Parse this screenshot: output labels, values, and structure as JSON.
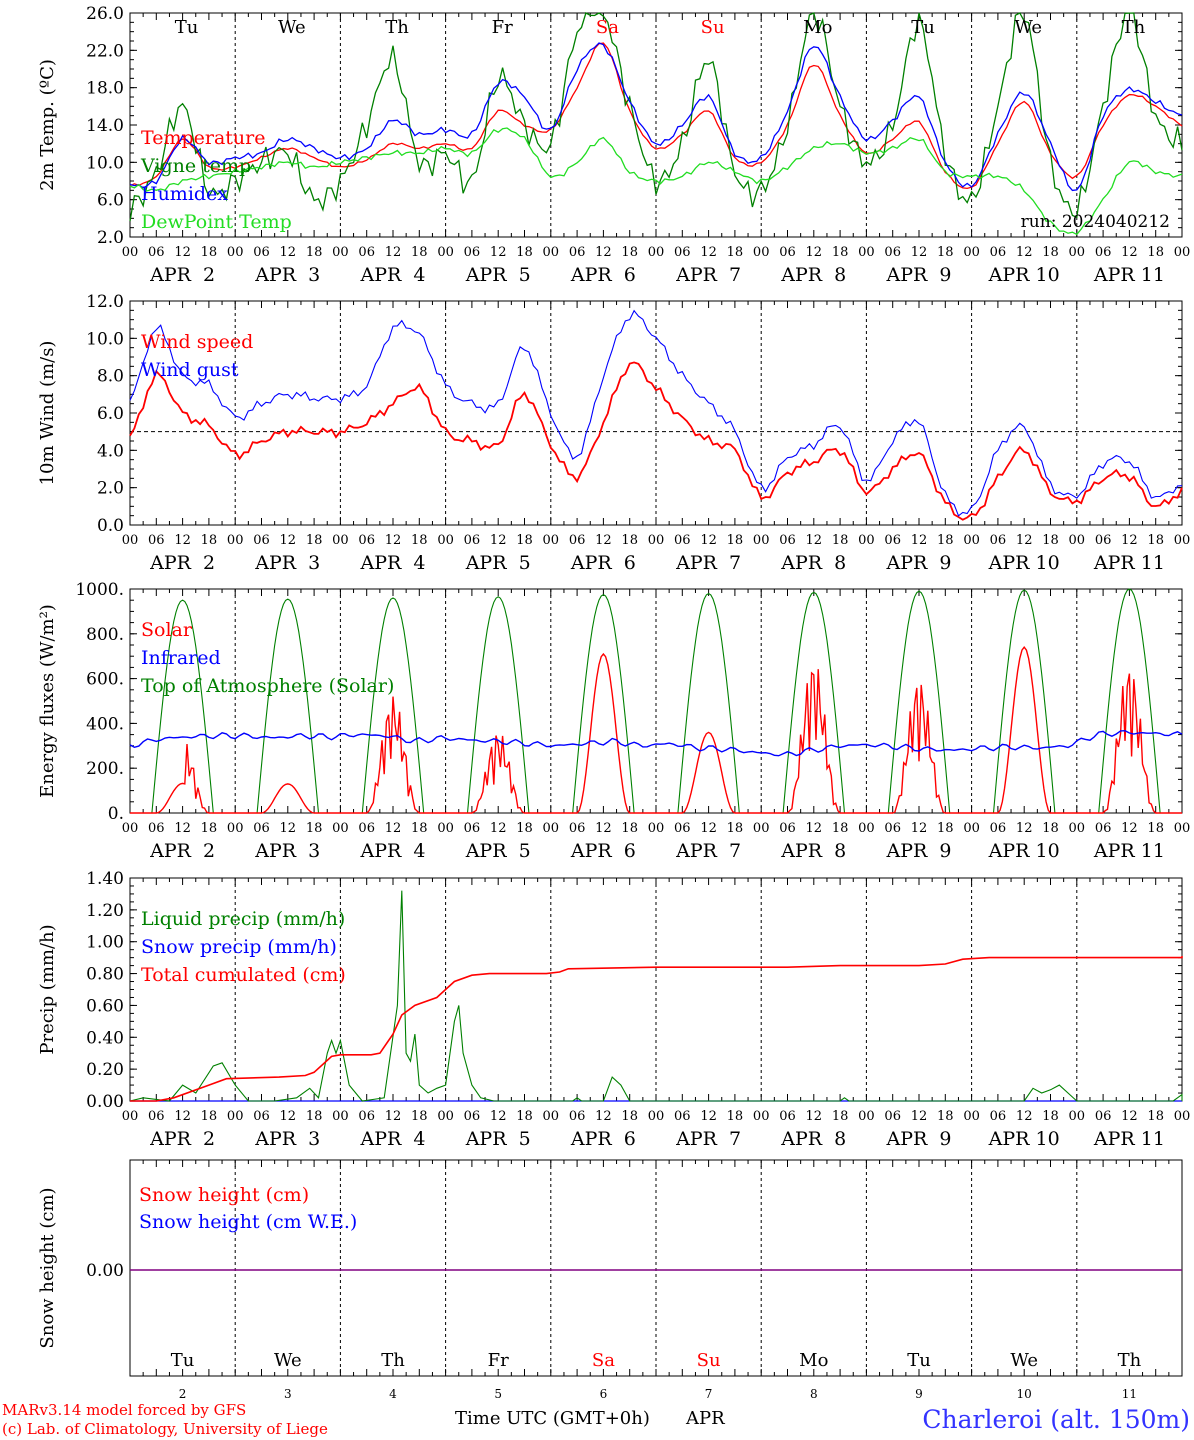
{
  "run_label": "run: 2024040212",
  "x_axis_title": "Time UTC (GMT+0h)",
  "x_axis_month": "APR",
  "footer": {
    "model_line": "MARv3.14 model forced by GFS",
    "copyright_line": "(c) Lab. of Climatology, University of Liege",
    "station": "Charleroi (alt. 150m)"
  },
  "hour_ticks": [
    "00",
    "06",
    "12",
    "18"
  ],
  "day_labels": [
    "APR  2",
    "APR  3",
    "APR  4",
    "APR  5",
    "APR  6",
    "APR  7",
    "APR  8",
    "APR  9",
    "APR 10",
    "APR 11"
  ],
  "day_numbers": [
    "2",
    "3",
    "4",
    "5",
    "6",
    "7",
    "8",
    "9",
    "10",
    "11"
  ],
  "weekdays": [
    {
      "label": "Tu",
      "weekend": false
    },
    {
      "label": "We",
      "weekend": false
    },
    {
      "label": "Th",
      "weekend": false
    },
    {
      "label": "Fr",
      "weekend": false
    },
    {
      "label": "Sa",
      "weekend": true
    },
    {
      "label": "Su",
      "weekend": true
    },
    {
      "label": "Mo",
      "weekend": false
    },
    {
      "label": "Tu",
      "weekend": false
    },
    {
      "label": "We",
      "weekend": false
    },
    {
      "label": "Th",
      "weekend": false
    }
  ],
  "colors": {
    "red": "#ff0000",
    "green": "#008000",
    "blue": "#0000ff",
    "lightgreen": "#22dd22",
    "purple": "#800080",
    "footer_red": "#ff0000",
    "station_blue": "#3333ff",
    "weekend": "#ff0000"
  },
  "chart_data": [
    {
      "type": "line",
      "id": "temperature",
      "ylabel": "2m Temp. (ºC)",
      "ylim": [
        2,
        26
      ],
      "yticks": [
        "2.0",
        "6.0",
        "10.0",
        "14.0",
        "18.0",
        "22.0",
        "26.0"
      ],
      "show_weekdays": true,
      "x_hours_knots": [
        0,
        6,
        12,
        18,
        24,
        30,
        36,
        42,
        48,
        54,
        60,
        66,
        72,
        78,
        84,
        90,
        96,
        102,
        108,
        114,
        120,
        126,
        132,
        138,
        144,
        150,
        156,
        162,
        168,
        174,
        180,
        186,
        192,
        198,
        204,
        210,
        216,
        222,
        228,
        234,
        240
      ],
      "series": [
        {
          "name": "Temperature",
          "color": "red",
          "values": [
            7.5,
            8.5,
            12.5,
            9.5,
            9.5,
            10.5,
            11.5,
            10.5,
            9.5,
            10.3,
            12.0,
            11.5,
            12.0,
            11.5,
            15.5,
            14.0,
            13.5,
            18.0,
            22.8,
            15.5,
            11.5,
            13.0,
            15.5,
            10.5,
            10.0,
            14.0,
            20.5,
            15.0,
            11.0,
            12.5,
            14.3,
            9.0,
            7.3,
            12.0,
            16.5,
            11.0,
            8.5,
            14.0,
            17.2,
            16.0,
            14.0
          ]
        },
        {
          "name": "Vigne temp",
          "color": "green",
          "values": [
            5.0,
            9.0,
            16.0,
            7.0,
            8.0,
            10.0,
            11.0,
            6.0,
            8.0,
            14.0,
            21.0,
            10.0,
            11.0,
            8.0,
            19.0,
            14.0,
            12.0,
            24.0,
            26.0,
            16.0,
            8.0,
            12.0,
            21.0,
            9.0,
            7.0,
            14.0,
            26.0,
            16.0,
            10.0,
            14.0,
            25.0,
            11.0,
            6.0,
            16.0,
            26.0,
            10.0,
            5.0,
            16.0,
            26.0,
            15.0,
            12.0
          ]
        },
        {
          "name": "Humidex",
          "color": "blue",
          "values": [
            7.5,
            8.0,
            12.5,
            10.0,
            10.5,
            11.0,
            12.5,
            11.5,
            10.5,
            11.5,
            14.5,
            13.0,
            13.5,
            13.0,
            18.5,
            17.0,
            13.5,
            20.0,
            22.5,
            16.5,
            12.0,
            14.0,
            17.0,
            11.0,
            10.5,
            15.5,
            22.5,
            17.0,
            12.5,
            14.5,
            17.0,
            10.0,
            7.5,
            13.0,
            17.5,
            12.0,
            7.0,
            15.0,
            17.8,
            16.5,
            15.0
          ]
        },
        {
          "name": "DewPoint Temp",
          "color": "lightgreen",
          "values": [
            7.5,
            7.0,
            8.0,
            8.5,
            9.0,
            9.5,
            10.0,
            9.5,
            10.0,
            10.5,
            11.0,
            11.0,
            11.5,
            11.0,
            13.5,
            12.5,
            8.5,
            10.0,
            12.5,
            9.0,
            8.0,
            8.5,
            10.0,
            9.0,
            8.0,
            9.5,
            11.5,
            12.0,
            11.0,
            11.5,
            12.5,
            9.0,
            8.5,
            8.5,
            7.0,
            3.5,
            2.5,
            6.0,
            10.0,
            9.0,
            8.5
          ]
        }
      ]
    },
    {
      "type": "line",
      "id": "wind",
      "ylabel": "10m Wind (m/s)",
      "ylim": [
        0,
        12
      ],
      "yticks": [
        "0.0",
        "2.0",
        "4.0",
        "6.0",
        "8.0",
        "10.0",
        "12.0"
      ],
      "reference_line": 5,
      "x_hours_knots": [
        0,
        6,
        12,
        18,
        24,
        30,
        36,
        42,
        48,
        54,
        60,
        66,
        72,
        78,
        84,
        90,
        96,
        102,
        108,
        114,
        120,
        126,
        132,
        138,
        144,
        150,
        156,
        162,
        168,
        174,
        180,
        186,
        192,
        198,
        204,
        210,
        216,
        222,
        228,
        234,
        240
      ],
      "series": [
        {
          "name": "Wind speed",
          "color": "red",
          "values": [
            4.7,
            8.0,
            6.0,
            5.3,
            3.8,
            4.5,
            5.0,
            5.0,
            5.0,
            5.5,
            6.5,
            7.3,
            5.0,
            4.5,
            4.3,
            7.0,
            4.3,
            2.6,
            5.5,
            8.6,
            7.3,
            5.7,
            4.5,
            4.0,
            1.5,
            2.8,
            3.4,
            4.0,
            1.8,
            3.0,
            3.8,
            1.2,
            0.4,
            2.5,
            4.0,
            1.8,
            1.3,
            2.5,
            2.6,
            1.0,
            1.8
          ]
        },
        {
          "name": "Wind gust",
          "color": "blue",
          "values": [
            6.6,
            10.5,
            8.0,
            7.5,
            5.8,
            6.5,
            7.0,
            6.8,
            6.8,
            7.5,
            10.5,
            10.2,
            7.5,
            6.5,
            6.5,
            9.5,
            6.0,
            3.7,
            8.0,
            11.2,
            10.0,
            8.0,
            6.5,
            5.0,
            2.0,
            3.6,
            4.3,
            5.3,
            2.4,
            4.5,
            5.5,
            1.6,
            0.8,
            4.0,
            5.2,
            2.2,
            1.6,
            3.3,
            3.4,
            1.5,
            2.2
          ]
        }
      ]
    },
    {
      "type": "line",
      "id": "energy",
      "ylabel": "Energy fluxes (W/m²)",
      "ylim": [
        0,
        1000
      ],
      "yticks": [
        "0.",
        "200.",
        "400.",
        "600.",
        "800.",
        "1000."
      ],
      "solar_peaks": [
        330,
        130,
        530,
        370,
        710,
        360,
        700,
        610,
        740,
        670
      ],
      "toa_peaks": [
        950,
        955,
        960,
        965,
        975,
        980,
        985,
        990,
        995,
        1000
      ],
      "infrared_values": [
        300,
        330,
        340,
        345,
        345,
        335,
        345,
        340,
        350,
        345,
        320,
        335,
        325,
        320,
        310,
        300,
        310,
        320,
        300,
        310,
        290,
        285,
        270,
        260,
        280,
        300,
        305,
        295,
        285,
        280,
        290,
        295,
        290,
        300,
        350,
        360,
        355,
        350
      ],
      "series": [
        {
          "name": "Solar",
          "color": "red"
        },
        {
          "name": "Infrared",
          "color": "blue"
        },
        {
          "name": "Top of Atmosphere (Solar)",
          "color": "green"
        }
      ]
    },
    {
      "type": "line",
      "id": "precip",
      "ylabel": "Precip (mm/h)",
      "ylim": [
        0,
        1.4
      ],
      "yticks": [
        "0.00",
        "0.20",
        "0.40",
        "0.60",
        "0.80",
        "1.00",
        "1.20",
        "1.40"
      ],
      "liquid_points": [
        [
          0,
          0
        ],
        [
          3,
          0.02
        ],
        [
          9,
          0
        ],
        [
          12,
          0.1
        ],
        [
          15,
          0.05
        ],
        [
          19,
          0.22
        ],
        [
          21,
          0.24
        ],
        [
          24,
          0.1
        ],
        [
          27,
          0
        ],
        [
          33,
          0
        ],
        [
          38,
          0.02
        ],
        [
          41,
          0.08
        ],
        [
          43,
          0.02
        ],
        [
          45,
          0.3
        ],
        [
          46,
          0.38
        ],
        [
          47,
          0.3
        ],
        [
          48,
          0.38
        ],
        [
          50,
          0.1
        ],
        [
          53,
          0
        ],
        [
          58,
          0.02
        ],
        [
          61,
          0.6
        ],
        [
          62,
          1.32
        ],
        [
          63,
          0.3
        ],
        [
          64,
          0.25
        ],
        [
          65,
          0.42
        ],
        [
          66,
          0.1
        ],
        [
          68,
          0.05
        ],
        [
          70,
          0.08
        ],
        [
          72,
          0.1
        ],
        [
          74,
          0.5
        ],
        [
          75,
          0.6
        ],
        [
          76,
          0.3
        ],
        [
          78,
          0.1
        ],
        [
          80,
          0.02
        ],
        [
          83,
          0
        ],
        [
          101,
          0
        ],
        [
          102,
          0.02
        ],
        [
          103,
          0
        ],
        [
          108,
          0
        ],
        [
          110,
          0.15
        ],
        [
          112,
          0.1
        ],
        [
          114,
          0
        ],
        [
          162,
          0
        ],
        [
          163,
          0.02
        ],
        [
          164,
          0
        ],
        [
          204,
          0
        ],
        [
          206,
          0.08
        ],
        [
          208,
          0.05
        ],
        [
          210,
          0.07
        ],
        [
          212,
          0.1
        ],
        [
          214,
          0.05
        ],
        [
          216,
          0
        ],
        [
          238,
          0
        ],
        [
          240,
          0.04
        ],
        [
          242,
          0.02
        ],
        [
          244,
          0
        ]
      ],
      "total_points": [
        [
          0,
          0
        ],
        [
          6,
          0
        ],
        [
          10,
          0.02
        ],
        [
          18,
          0.1
        ],
        [
          22,
          0.14
        ],
        [
          34,
          0.15
        ],
        [
          40,
          0.16
        ],
        [
          42,
          0.18
        ],
        [
          46,
          0.28
        ],
        [
          48,
          0.29
        ],
        [
          55,
          0.29
        ],
        [
          57,
          0.3
        ],
        [
          60,
          0.42
        ],
        [
          62,
          0.54
        ],
        [
          65,
          0.6
        ],
        [
          70,
          0.65
        ],
        [
          74,
          0.75
        ],
        [
          78,
          0.79
        ],
        [
          82,
          0.8
        ],
        [
          90,
          0.8
        ],
        [
          95,
          0.8
        ],
        [
          98,
          0.81
        ],
        [
          100,
          0.83
        ],
        [
          120,
          0.84
        ],
        [
          150,
          0.84
        ],
        [
          162,
          0.85
        ],
        [
          180,
          0.85
        ],
        [
          186,
          0.86
        ],
        [
          190,
          0.89
        ],
        [
          196,
          0.9
        ],
        [
          240,
          0.9
        ],
        [
          245,
          0.91
        ],
        [
          252,
          0.91
        ]
      ],
      "series": [
        {
          "name": "Liquid precip (mm/h)",
          "color": "green"
        },
        {
          "name": "Snow precip (mm/h)",
          "color": "blue"
        },
        {
          "name": "Total cumulated (cm)",
          "color": "red"
        }
      ]
    },
    {
      "type": "line",
      "id": "snow",
      "ylabel": "Snow height (cm)",
      "yticks": [
        "0.00"
      ],
      "value": 0,
      "series": [
        {
          "name": "Snow height (cm)",
          "color": "red"
        },
        {
          "name": "Snow height (cm W.E.)",
          "color": "blue"
        }
      ]
    }
  ]
}
